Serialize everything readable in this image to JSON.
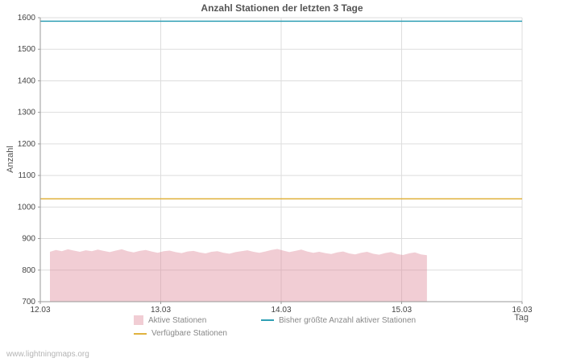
{
  "watermark": "www.lightningmaps.org",
  "chart_data": {
    "type": "area",
    "title": "Anzahl Stationen der letzten 3 Tage",
    "xlabel": "Tag",
    "ylabel": "Anzahl",
    "ylim": [
      700,
      1600
    ],
    "xlim": [
      12,
      16
    ],
    "y_ticks": [
      700,
      800,
      900,
      1000,
      1100,
      1200,
      1300,
      1400,
      1500,
      1600
    ],
    "x_ticks": [
      "12.03",
      "13.03",
      "14.03",
      "15.03",
      "16.03"
    ],
    "grid": true,
    "legend_position": "bottom",
    "colors": {
      "grid": "#dddddd",
      "axis": "#999999",
      "tick_text": "#444444"
    },
    "series": [
      {
        "name": "Aktive Stationen",
        "type": "area",
        "color": "#dd8899",
        "fill_opacity": 0.42,
        "x_start": 12.08,
        "x_end": 15.21,
        "values": [
          858,
          864,
          860,
          866,
          862,
          858,
          863,
          860,
          865,
          861,
          857,
          862,
          866,
          860,
          856,
          861,
          864,
          859,
          855,
          860,
          862,
          857,
          854,
          859,
          861,
          856,
          853,
          858,
          860,
          855,
          852,
          857,
          860,
          863,
          858,
          855,
          859,
          864,
          867,
          862,
          857,
          861,
          865,
          859,
          855,
          858,
          854,
          851,
          856,
          859,
          853,
          850,
          855,
          858,
          852,
          849,
          854,
          857,
          851,
          848,
          853,
          856,
          850,
          847
        ]
      },
      {
        "name": "Bisher größte Anzahl aktiver Stationen",
        "type": "line",
        "color": "#2f9fb4",
        "value": 1589
      },
      {
        "name": "Verfügbare Stationen",
        "type": "line",
        "color": "#e0b23e",
        "value": 1026
      }
    ]
  }
}
